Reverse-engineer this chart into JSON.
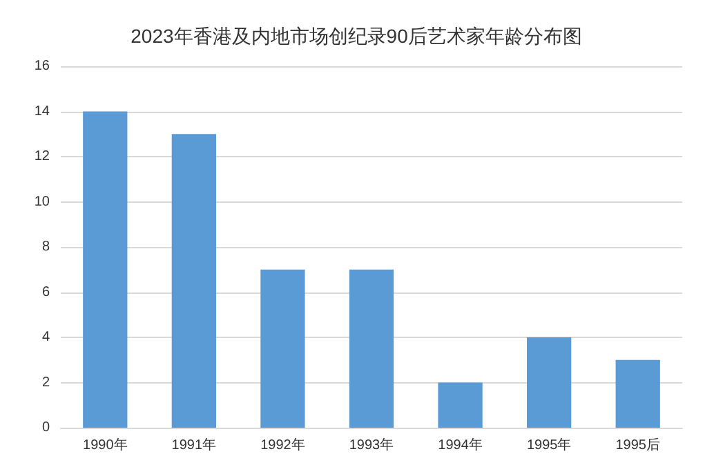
{
  "chart_data": {
    "type": "bar",
    "title": "2023年香港及内地市场创纪录90后艺术家年龄分布图",
    "categories": [
      "1990年",
      "1991年",
      "1992年",
      "1993年",
      "1994年",
      "1995年",
      "1995后"
    ],
    "values": [
      14,
      13,
      7,
      7,
      2,
      4,
      3
    ],
    "color": "#5b9bd5",
    "ylim": [
      0,
      16
    ],
    "yticks": [
      0,
      2,
      4,
      6,
      8,
      10,
      12,
      14,
      16
    ],
    "grid": "y"
  }
}
